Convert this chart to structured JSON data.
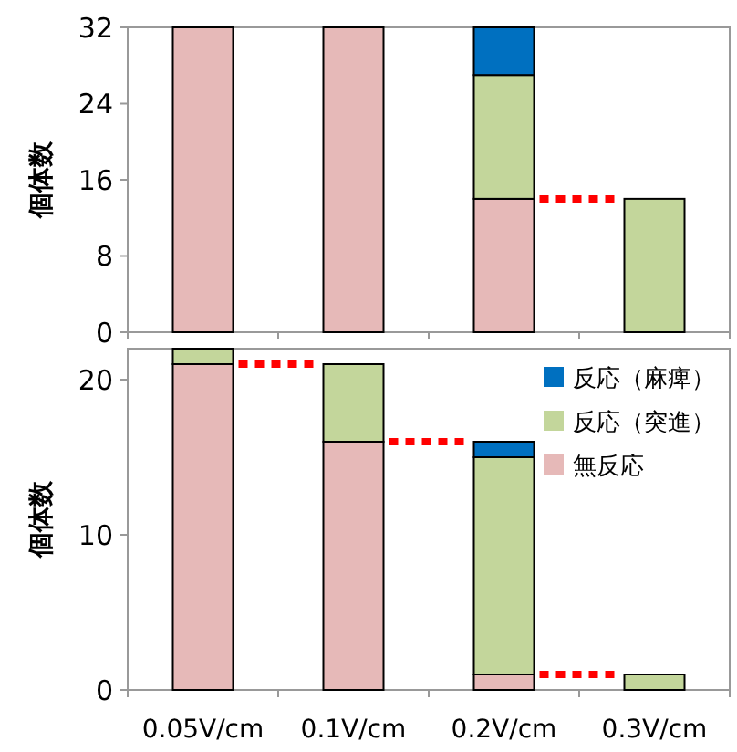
{
  "chart_data": [
    {
      "type": "bar",
      "stacked": true,
      "ylabel": "個体数",
      "categories": [
        null,
        null,
        null,
        null
      ],
      "ylim": [
        0,
        32
      ],
      "yticks": [
        0,
        8,
        16,
        24,
        32
      ],
      "tick_labels": "y",
      "legend": false,
      "ref_lines": [
        {
          "axis": "y",
          "value": 14,
          "color": "#ff0000",
          "line_style": "dotted"
        }
      ],
      "series": [
        {
          "color": "#e6b9b8",
          "values": [
            32,
            32,
            14,
            0
          ]
        },
        {
          "color": "#c3d69b",
          "values": [
            0,
            0,
            13,
            14
          ]
        },
        {
          "color": "#0070c0",
          "values": [
            0,
            0,
            5,
            0
          ]
        }
      ]
    },
    {
      "type": "bar",
      "stacked": true,
      "ylabel": "個体数",
      "categories": [
        "0.05V/cm",
        "0.1V/cm",
        "0.2V/cm",
        "0.3V/cm"
      ],
      "ylim": [
        0,
        22
      ],
      "yticks": [
        0,
        10,
        20
      ],
      "legend": "top right",
      "ref_lines": [
        {
          "axis": "y",
          "value": 21,
          "color": "#ff0000",
          "line_style": "dotted"
        },
        {
          "axis": "y",
          "value": 16,
          "color": "#ff0000",
          "line_style": "dotted"
        },
        {
          "axis": "y",
          "value": 1,
          "color": "#ff0000",
          "line_style": "dotted"
        }
      ],
      "series": [
        {
          "name": "無反応",
          "color": "#e6b9b8",
          "values": [
            21,
            16,
            1,
            0
          ]
        },
        {
          "name": "反応（突進）",
          "color": "#c3d69b",
          "values": [
            1,
            5,
            14,
            1
          ]
        },
        {
          "name": "反応（麻痺）",
          "color": "#0070c0",
          "values": [
            0,
            0,
            1,
            0
          ]
        }
      ]
    }
  ]
}
